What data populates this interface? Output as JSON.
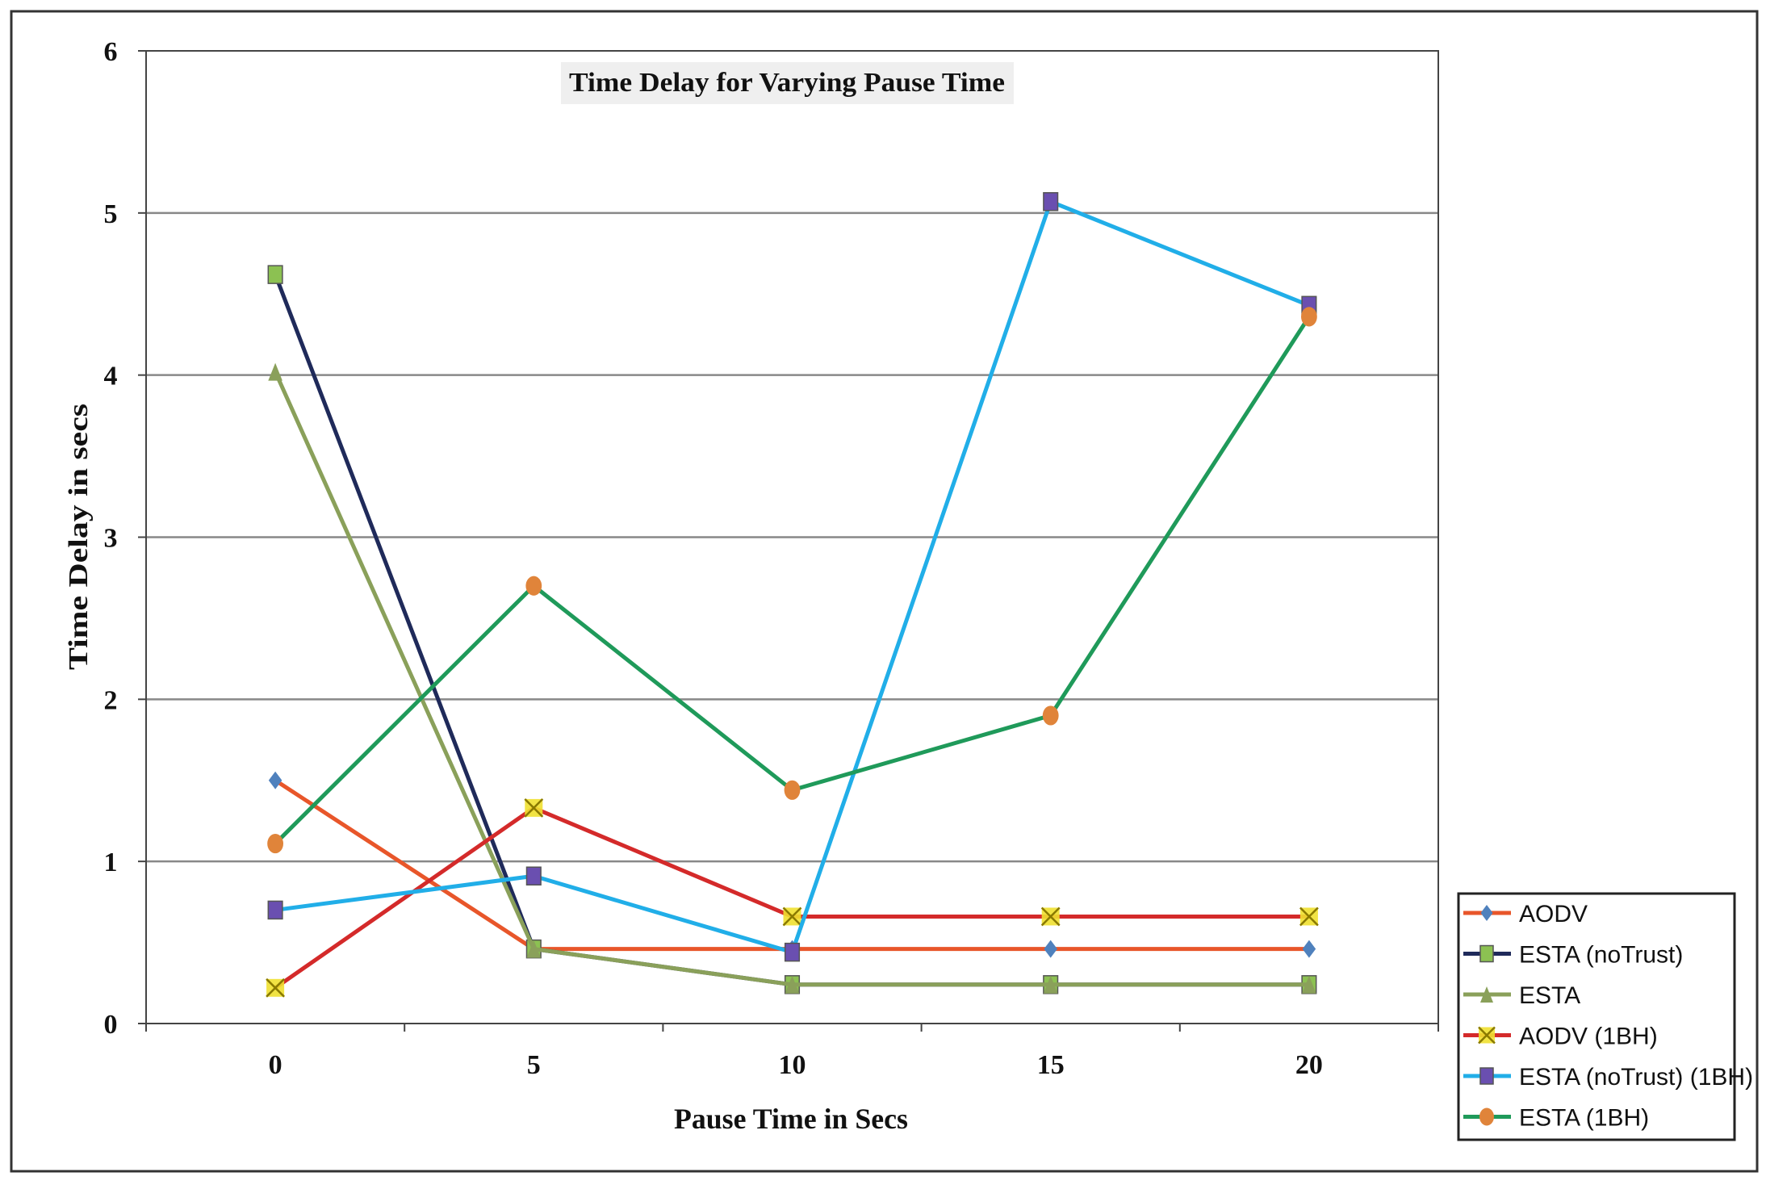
{
  "chart_data": {
    "type": "line",
    "title": "Time Delay for Varying Pause Time",
    "xlabel": "Pause Time in Secs",
    "ylabel": "Time Delay in secs",
    "categories": [
      "0",
      "5",
      "10",
      "15",
      "20"
    ],
    "ylim": [
      0,
      6
    ],
    "yticks": [
      "0",
      "1",
      "2",
      "3",
      "4",
      "5",
      "6"
    ],
    "grid": "horizontal",
    "legend_position": "bottom-right",
    "series": [
      {
        "name": "AODV",
        "values": [
          1.5,
          0.46,
          0.46,
          0.46,
          0.46
        ],
        "line_color": "#e8562a",
        "marker": "diamond",
        "marker_color": "#4f81bd"
      },
      {
        "name": "ESTA (noTrust)",
        "values": [
          4.62,
          0.46,
          0.24,
          0.24,
          0.24
        ],
        "line_color": "#1f2a5a",
        "marker": "square",
        "marker_color": "#8cc152"
      },
      {
        "name": "ESTA",
        "values": [
          4.02,
          0.46,
          0.24,
          0.24,
          0.24
        ],
        "line_color": "#8aa05a",
        "marker": "triangle",
        "marker_color": "#8aa05a"
      },
      {
        "name": "AODV (1BH)",
        "values": [
          0.22,
          1.33,
          0.66,
          0.66,
          0.66
        ],
        "line_color": "#d42a2a",
        "marker": "x",
        "marker_color": "#f0e030"
      },
      {
        "name": "ESTA (noTrust) (1BH)",
        "values": [
          0.7,
          0.91,
          0.44,
          5.07,
          4.43
        ],
        "line_color": "#21aee8",
        "marker": "square",
        "marker_color": "#6a4fb0"
      },
      {
        "name": "ESTA (1BH)",
        "values": [
          1.11,
          2.7,
          1.44,
          1.9,
          4.36
        ],
        "line_color": "#1f9a5a",
        "marker": "circle",
        "marker_color": "#e0843a"
      }
    ]
  }
}
